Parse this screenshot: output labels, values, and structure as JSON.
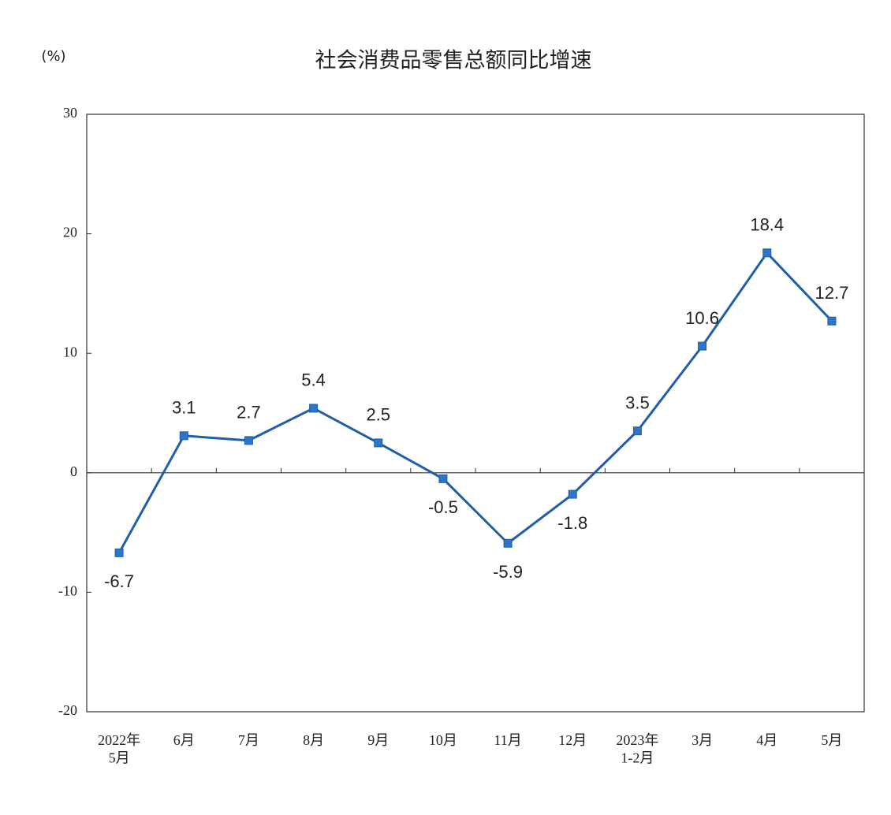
{
  "chart_data": {
    "type": "line",
    "title": "社会消费品零售总额同比增速",
    "y_label": "(%)",
    "categories": [
      "2022年\n5月",
      "6月",
      "7月",
      "8月",
      "9月",
      "10月",
      "11月",
      "12月",
      "2023年\n1-2月",
      "3月",
      "4月",
      "5月"
    ],
    "series": [
      {
        "name": "社会消费品零售总额同比增速",
        "color": "#1f5fa8",
        "values": [
          -6.7,
          3.1,
          2.7,
          5.4,
          2.5,
          -0.5,
          -5.9,
          -1.8,
          3.5,
          10.6,
          18.4,
          12.7
        ]
      }
    ],
    "ylim": [
      -20,
      30
    ],
    "yticks": [
      -20,
      -10,
      0,
      10,
      20,
      30
    ],
    "grid": false
  }
}
